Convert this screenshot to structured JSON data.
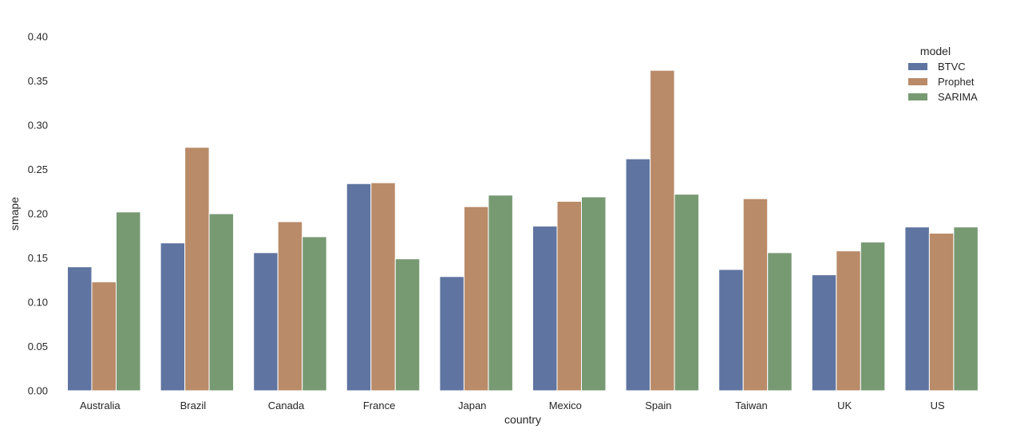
{
  "chart_data": {
    "type": "bar",
    "title": "",
    "xlabel": "country",
    "ylabel": "smape",
    "ylim": [
      0,
      0.4
    ],
    "yticks": [
      "0.00",
      "0.05",
      "0.10",
      "0.15",
      "0.20",
      "0.25",
      "0.30",
      "0.35",
      "0.40"
    ],
    "categories": [
      "Australia",
      "Brazil",
      "Canada",
      "France",
      "Japan",
      "Mexico",
      "Spain",
      "Taiwan",
      "UK",
      "US"
    ],
    "legend_title": "model",
    "legend_position": "top-right",
    "grid": false,
    "series": [
      {
        "name": "BTVC",
        "color": "#5f74a0",
        "values": [
          0.14,
          0.167,
          0.156,
          0.234,
          0.129,
          0.186,
          0.262,
          0.137,
          0.131,
          0.185
        ]
      },
      {
        "name": "Prophet",
        "color": "#b98b69",
        "values": [
          0.123,
          0.275,
          0.191,
          0.235,
          0.208,
          0.214,
          0.362,
          0.217,
          0.158,
          0.178
        ]
      },
      {
        "name": "SARIMA",
        "color": "#779a73",
        "values": [
          0.202,
          0.2,
          0.174,
          0.149,
          0.221,
          0.219,
          0.222,
          0.156,
          0.168,
          0.185
        ]
      }
    ]
  }
}
